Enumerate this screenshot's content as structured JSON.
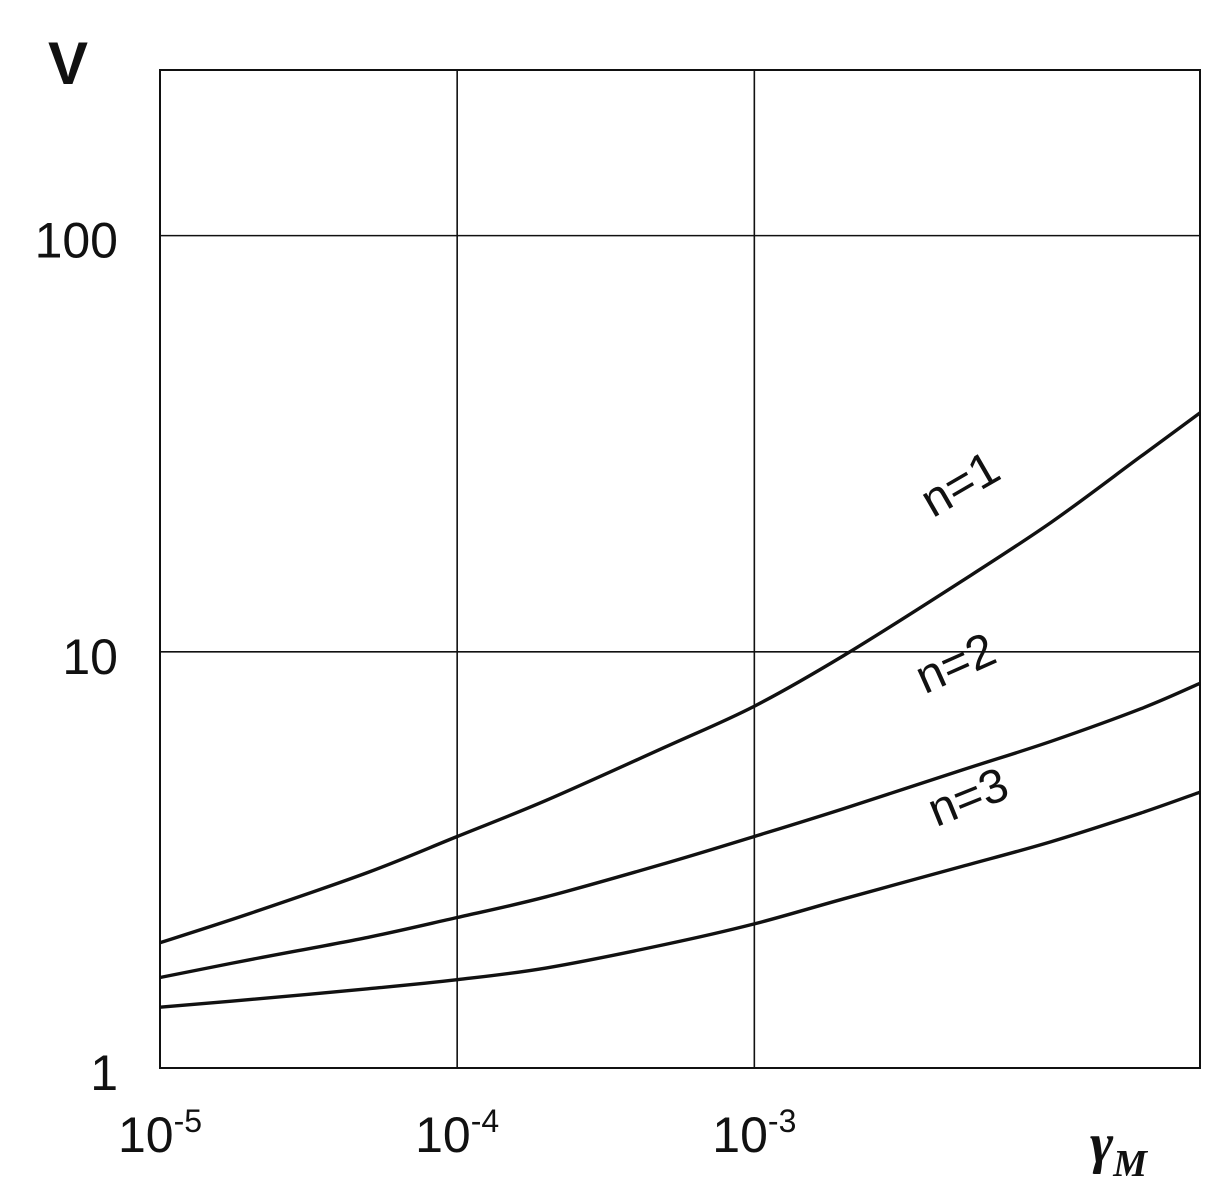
{
  "chart_data": {
    "type": "line",
    "title": "",
    "ylabel": "V",
    "xlabel": {
      "base": "γ",
      "sub": "M"
    },
    "xscale": "log",
    "yscale": "log",
    "xlim": [
      1e-05,
      0.0316
    ],
    "ylim": [
      1,
      250
    ],
    "grid": true,
    "x_ticks": [
      {
        "value": 1e-05,
        "base": "10",
        "exp": "-5"
      },
      {
        "value": 0.0001,
        "base": "10",
        "exp": "-4"
      },
      {
        "value": 0.001,
        "base": "10",
        "exp": "-3"
      }
    ],
    "y_ticks": [
      {
        "value": 1,
        "label": "1"
      },
      {
        "value": 10,
        "label": "10"
      },
      {
        "value": 100,
        "label": "100"
      }
    ],
    "series": [
      {
        "name": "n=1",
        "x": [
          1e-05,
          2e-05,
          5e-05,
          0.0001,
          0.0002,
          0.0005,
          0.001,
          0.002,
          0.005,
          0.01,
          0.02,
          0.0316
        ],
        "y": [
          2.0,
          2.35,
          2.95,
          3.6,
          4.4,
          5.9,
          7.4,
          9.8,
          14.8,
          20.5,
          29.5,
          37.5
        ]
      },
      {
        "name": "n=2",
        "x": [
          1e-05,
          2e-05,
          5e-05,
          0.0001,
          0.0002,
          0.0005,
          0.001,
          0.002,
          0.005,
          0.01,
          0.02,
          0.0316
        ],
        "y": [
          1.65,
          1.82,
          2.06,
          2.3,
          2.58,
          3.1,
          3.6,
          4.2,
          5.2,
          6.1,
          7.3,
          8.4
        ]
      },
      {
        "name": "n=3",
        "x": [
          1e-05,
          2e-05,
          5e-05,
          0.0001,
          0.0002,
          0.0005,
          0.001,
          0.002,
          0.005,
          0.01,
          0.02,
          0.0316
        ],
        "y": [
          1.4,
          1.46,
          1.55,
          1.63,
          1.74,
          1.98,
          2.22,
          2.55,
          3.05,
          3.5,
          4.1,
          4.6
        ]
      }
    ]
  }
}
